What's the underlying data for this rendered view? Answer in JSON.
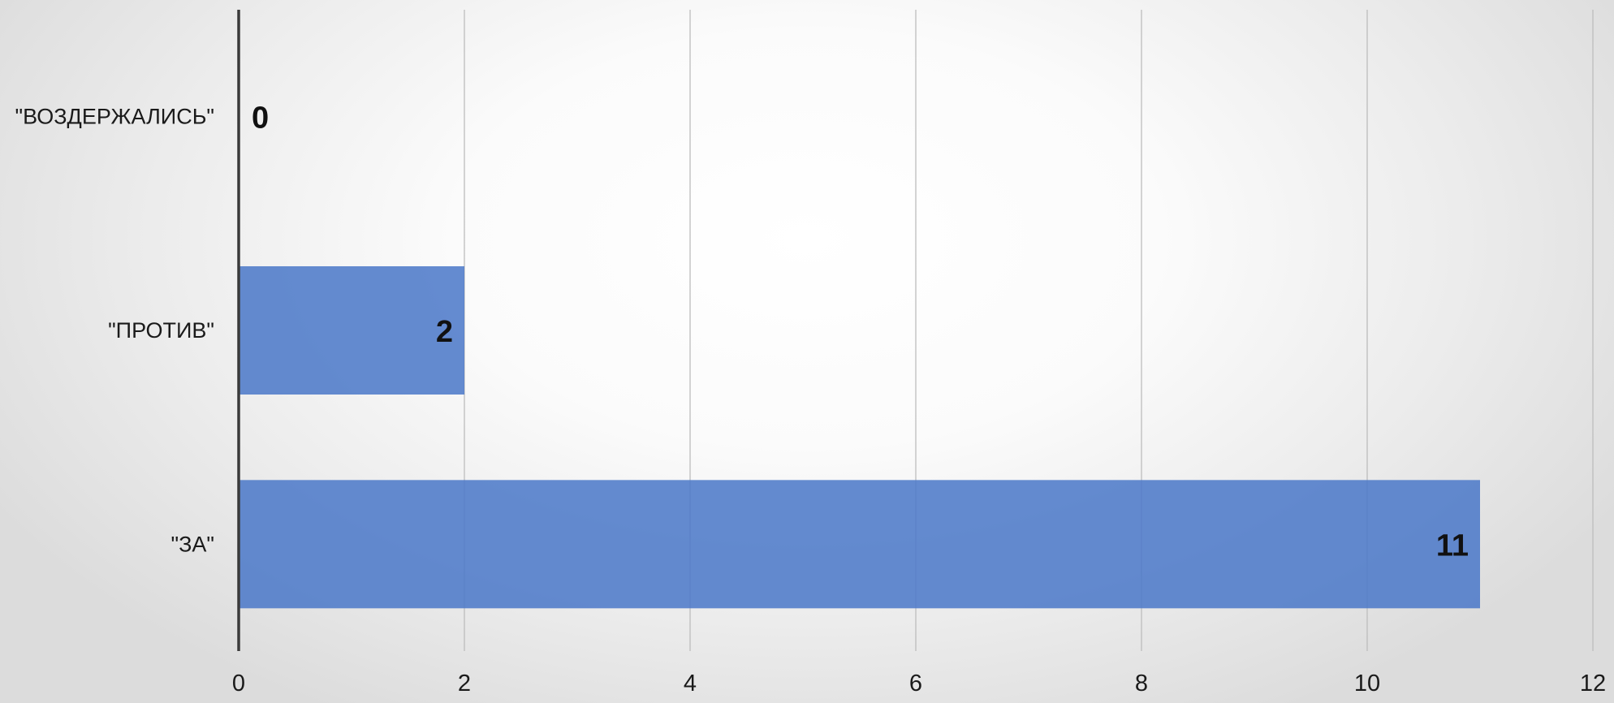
{
  "chart_data": {
    "type": "bar",
    "orientation": "horizontal",
    "categories": [
      "\"ВОЗДЕРЖАЛИСЬ\"",
      "\"ПРОТИВ\"",
      "\"ЗА\""
    ],
    "values": [
      0,
      2,
      11
    ],
    "data_labels": [
      "0",
      "2",
      "11"
    ],
    "xlim": [
      0,
      12
    ],
    "x_ticks": [
      0,
      2,
      4,
      6,
      8,
      10,
      12
    ],
    "x_tick_labels": [
      "0",
      "2",
      "4",
      "6",
      "8",
      "10",
      "12"
    ],
    "grid": true,
    "legend": false,
    "bar_color": "#4a78c8"
  }
}
